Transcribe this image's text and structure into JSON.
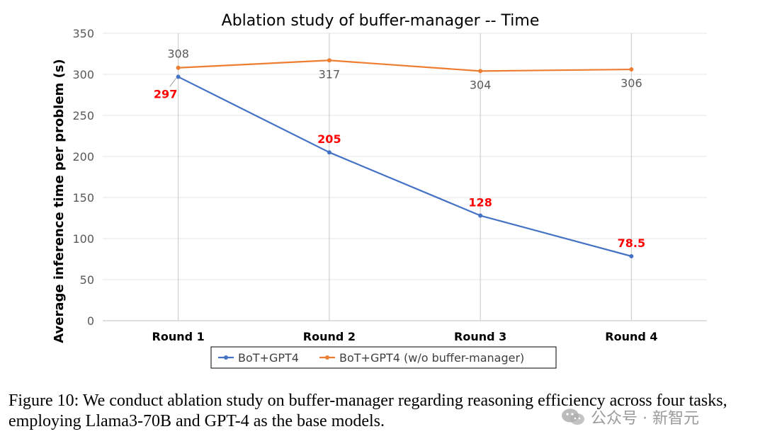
{
  "chart_data": {
    "type": "line",
    "title": "Ablation study of buffer-manager -- Time",
    "xlabel": "",
    "ylabel": "Average inference time per problem (s)",
    "categories": [
      "Round 1",
      "Round 2",
      "Round 3",
      "Round 4"
    ],
    "ylim": [
      0,
      350
    ],
    "yticks": [
      0,
      50,
      100,
      150,
      200,
      250,
      300,
      350
    ],
    "grid": "vertical",
    "legend": "bottom",
    "series": [
      {
        "name": "BoT+GPT4",
        "values": [
          297,
          205,
          128,
          78.5
        ],
        "labels": [
          "297",
          "205",
          "128",
          "78.5"
        ],
        "color": "#4472C4",
        "label_color": "#FF0000"
      },
      {
        "name": "BoT+GPT4 (w/o buffer-manager)",
        "values": [
          308,
          317,
          304,
          306
        ],
        "labels": [
          "308",
          "317",
          "304",
          "306"
        ],
        "color": "#ED7D31",
        "label_color": "#595959"
      }
    ]
  },
  "caption": "Figure 10: We conduct ablation study on buffer-manager regarding reasoning efficiency across four tasks, employing Llama3-70B and GPT-4 as the base models.",
  "watermark": {
    "text": "公众号 · 新智元",
    "icon": "wechat-icon"
  }
}
